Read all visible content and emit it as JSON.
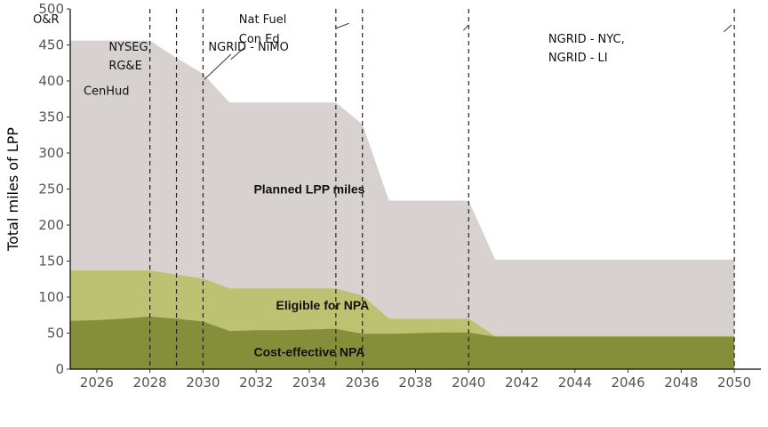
{
  "chart_data": {
    "type": "area",
    "title": "",
    "xlabel": "",
    "ylabel": "Total miles of LPP",
    "xlim": [
      2025,
      2051
    ],
    "ylim": [
      0,
      500
    ],
    "x_ticks": [
      2026,
      2028,
      2030,
      2032,
      2034,
      2036,
      2038,
      2040,
      2042,
      2044,
      2046,
      2048,
      2050
    ],
    "y_ticks": [
      0,
      50,
      100,
      150,
      200,
      250,
      300,
      350,
      400,
      450,
      500
    ],
    "grid": false,
    "colors": {
      "planned": "#d7d2d0",
      "eligible": "#bdc172",
      "cost_effective": "#858f3a",
      "axis": "#000000",
      "event_line": "#222222"
    },
    "series": [
      {
        "name": "Planned LPP miles",
        "key": "planned",
        "label": "Planned LPP miles",
        "label_at": [
          2034,
          250
        ],
        "points": [
          [
            2025,
            456
          ],
          [
            2028,
            456
          ],
          [
            2029,
            432
          ],
          [
            2030,
            410
          ],
          [
            2031,
            370
          ],
          [
            2035,
            370
          ],
          [
            2036,
            340
          ],
          [
            2037,
            234
          ],
          [
            2040,
            234
          ],
          [
            2041,
            152
          ],
          [
            2050,
            152
          ]
        ]
      },
      {
        "name": "Eligible for NPA",
        "key": "eligible",
        "label": "Eligible for NPA",
        "label_at": [
          2034.5,
          89
        ],
        "points": [
          [
            2025,
            137
          ],
          [
            2028,
            137
          ],
          [
            2029,
            131
          ],
          [
            2030,
            126
          ],
          [
            2031,
            112
          ],
          [
            2035,
            112
          ],
          [
            2036,
            102
          ],
          [
            2037,
            70
          ],
          [
            2040,
            70
          ],
          [
            2041,
            46
          ],
          [
            2050,
            46
          ]
        ]
      },
      {
        "name": "Cost-effective NPA",
        "key": "cost_effective",
        "label": "Cost-effective NPA",
        "label_at": [
          2034,
          24
        ],
        "points": [
          [
            2025,
            67
          ],
          [
            2026,
            68
          ],
          [
            2027,
            70
          ],
          [
            2028,
            73
          ],
          [
            2029,
            70
          ],
          [
            2030,
            66
          ],
          [
            2031,
            53
          ],
          [
            2032,
            54
          ],
          [
            2033,
            54
          ],
          [
            2034,
            55
          ],
          [
            2035,
            56
          ],
          [
            2036,
            49
          ],
          [
            2037,
            49
          ],
          [
            2038,
            50
          ],
          [
            2039,
            51
          ],
          [
            2040,
            51
          ],
          [
            2041,
            45
          ],
          [
            2050,
            45
          ]
        ]
      }
    ],
    "events": [
      {
        "x": 2028,
        "labels": [
          "O&R"
        ],
        "label_at": [
          2023.6,
          485
        ],
        "leader": null
      },
      {
        "x": 2028,
        "labels": [
          "CenHud"
        ],
        "label_at": [
          2025.5,
          386
        ],
        "leader": [
          [
            2030.05,
            402
          ],
          [
            2031.05,
            437
          ]
        ]
      },
      {
        "x": 2029,
        "labels": [
          "NYSEG,",
          "RG&E"
        ],
        "label_at": [
          2026.45,
          447
        ],
        "leader": [
          [
            2031.05,
            430
          ],
          [
            2031.55,
            446
          ]
        ]
      },
      {
        "x": 2030,
        "labels": [
          "Nat Fuel"
        ],
        "label_at": [
          2031.35,
          485
        ],
        "leader": [
          [
            2035,
            473
          ],
          [
            2035.5,
            480
          ]
        ]
      },
      {
        "x": 2030,
        "labels": [
          "NGRID - NiMO"
        ],
        "label_at": [
          2030.2,
          447
        ],
        "leader": null
      },
      {
        "x": 2035,
        "labels": [
          "Con Ed"
        ],
        "label_at": [
          2031.35,
          458
        ],
        "leader": [
          [
            2039.8,
            470
          ],
          [
            2040,
            478
          ]
        ]
      },
      {
        "x": 2035,
        "labels": [
          "NGRID - NYC,",
          "NGRID - LI"
        ],
        "label_at": [
          2043,
          458
        ],
        "leader": [
          [
            2049.6,
            468
          ],
          [
            2049.9,
            478
          ]
        ]
      },
      {
        "x": 2036,
        "labels": [],
        "label_at": null,
        "leader": null
      },
      {
        "x": 2040,
        "labels": [],
        "label_at": null,
        "leader": null
      },
      {
        "x": 2050,
        "labels": [],
        "label_at": null,
        "leader": null
      }
    ]
  }
}
